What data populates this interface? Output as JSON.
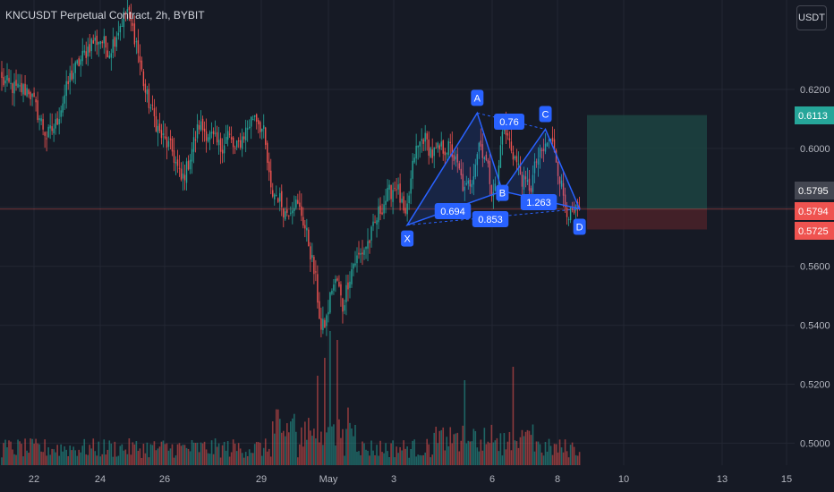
{
  "header": {
    "title": "KNCUSDT Perpetual Contract, 2h, BYBIT",
    "currency": "USDT"
  },
  "colors": {
    "background": "#161a25",
    "grid": "#232733",
    "up": "#26a69a",
    "down": "#ef5350",
    "pattern": "#2962ff",
    "profit_zone": "#1d4a45",
    "loss_zone": "#4a2229"
  },
  "chart_data": {
    "type": "candlestick",
    "symbol": "KNCUSDT Perpetual Contract",
    "interval": "2h",
    "exchange": "BYBIT",
    "y_ticks": [
      "0.6200",
      "0.6000",
      "0.5800",
      "0.5600",
      "0.5400",
      "0.5200",
      "0.5000"
    ],
    "x_ticks": [
      "22",
      "24",
      "26",
      "29",
      "May",
      "3",
      "6",
      "8",
      "10",
      "13",
      "15"
    ],
    "price_tags": [
      {
        "value": "0.6113",
        "color": "#26a69a"
      },
      {
        "value": "0.5795",
        "color": "#434651"
      },
      {
        "value": "0.5794",
        "color": "#ef5350"
      },
      {
        "value": "0.5725",
        "color": "#ef5350"
      }
    ],
    "close_anchors": [
      [
        0,
        0.623
      ],
      [
        8,
        0.62
      ],
      [
        15,
        0.62
      ],
      [
        25,
        0.604
      ],
      [
        30,
        0.608
      ],
      [
        38,
        0.624
      ],
      [
        45,
        0.631
      ],
      [
        50,
        0.636
      ],
      [
        55,
        0.637
      ],
      [
        60,
        0.633
      ],
      [
        66,
        0.642
      ],
      [
        70,
        0.647
      ],
      [
        75,
        0.636
      ],
      [
        80,
        0.619
      ],
      [
        88,
        0.605
      ],
      [
        95,
        0.599
      ],
      [
        100,
        0.589
      ],
      [
        103,
        0.593
      ],
      [
        106,
        0.6
      ],
      [
        110,
        0.608
      ],
      [
        118,
        0.603
      ],
      [
        122,
        0.6
      ],
      [
        126,
        0.605
      ],
      [
        130,
        0.599
      ],
      [
        136,
        0.606
      ],
      [
        141,
        0.612
      ],
      [
        146,
        0.605
      ],
      [
        150,
        0.585
      ],
      [
        154,
        0.584
      ],
      [
        158,
        0.578
      ],
      [
        163,
        0.582
      ],
      [
        167,
        0.578
      ],
      [
        171,
        0.568
      ],
      [
        175,
        0.555
      ],
      [
        178,
        0.538
      ],
      [
        181,
        0.542
      ],
      [
        184,
        0.553
      ],
      [
        187,
        0.555
      ],
      [
        190,
        0.546
      ],
      [
        193,
        0.555
      ],
      [
        196,
        0.561
      ],
      [
        200,
        0.564
      ],
      [
        205,
        0.569
      ],
      [
        210,
        0.578
      ],
      [
        215,
        0.584
      ],
      [
        220,
        0.588
      ],
      [
        225,
        0.575
      ],
      [
        230,
        0.598
      ],
      [
        235,
        0.604
      ],
      [
        240,
        0.598
      ],
      [
        245,
        0.6
      ],
      [
        250,
        0.6
      ],
      [
        255,
        0.592
      ],
      [
        258,
        0.585
      ],
      [
        262,
        0.59
      ],
      [
        266,
        0.602
      ],
      [
        269,
        0.598
      ],
      [
        273,
        0.587
      ],
      [
        276,
        0.586
      ],
      [
        279,
        0.608
      ],
      [
        283,
        0.602
      ],
      [
        287,
        0.595
      ],
      [
        291,
        0.588
      ],
      [
        295,
        0.587
      ],
      [
        298,
        0.596
      ],
      [
        301,
        0.598
      ],
      [
        305,
        0.603
      ],
      [
        308,
        0.6
      ],
      [
        311,
        0.59
      ],
      [
        314,
        0.581
      ],
      [
        317,
        0.577
      ],
      [
        320,
        0.578
      ],
      [
        322,
        0.5795
      ]
    ],
    "volume_spikes": {
      "183": 150,
      "187": 140,
      "258": 95,
      "285": 110,
      "176": 100,
      "180": 120
    },
    "harmonic_pattern": {
      "points": [
        {
          "label": "X",
          "index": 226,
          "price": 0.574
        },
        {
          "label": "A",
          "index": 265,
          "price": 0.612
        },
        {
          "label": "B",
          "index": 279,
          "price": 0.5855
        },
        {
          "label": "C",
          "index": 303,
          "price": 0.6065
        },
        {
          "label": "D",
          "index": 322,
          "price": 0.5795
        }
      ],
      "ratios": [
        {
          "text": "0.694"
        },
        {
          "text": "0.76"
        },
        {
          "text": "0.853"
        },
        {
          "text": "1.263"
        }
      ]
    },
    "position": {
      "entry": 0.5794,
      "target": 0.6113,
      "stop": 0.5725
    },
    "ylim": [
      0.4972,
      0.6412
    ]
  }
}
